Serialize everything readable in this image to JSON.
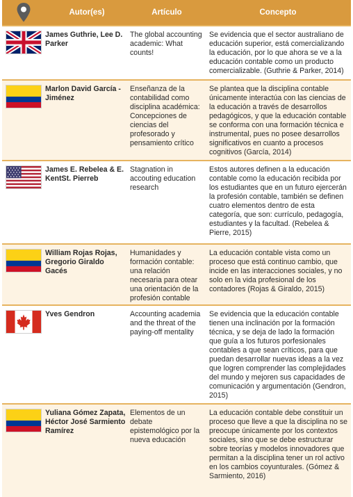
{
  "header": {
    "icon": "location-pin-icon",
    "author": "Autor(es)",
    "article": "Artículo",
    "concept": "Concepto"
  },
  "rows": [
    {
      "flag": "uk-flag-icon",
      "author": "James Guthrie, Lee D. Parker",
      "article": "The global accounting academic: What counts!",
      "concept": "Se evidencia que el sector australiano de educación superior, está comercializando la educación, por lo que ahora se ve a la educación contable como un producto comercializable. (Guthrie & Parker, 2014)"
    },
    {
      "flag": "colombia-flag-icon",
      "author": "Marlon David García -Jiménez",
      "article": "Enseñanza de la contabilidad como disciplina académica: Concepciones de ciencias del profesorado y pensamiento crítico",
      "concept": "Se plantea que la disciplina contable únicamente interactúa con las ciencias de la educación a través de desarrollos pedagógicos, y que la educación contable se conforma con una formación técnica e instrumental, pues no posee desarrollos significativos en cuanto a procesos cognitivos (García, 2014)"
    },
    {
      "flag": "usa-flag-icon",
      "author": "James E. Rebelea & E. KentSt. Pierreb",
      "article": "Stagnation in accouting education research",
      "concept": "Estos autores definen a la educación contable como la educación recibida por los estudiantes que en un futuro ejercerán la profesión contable, también se definen cuatro elementos dentro de esta categoría, que son: currículo, pedagogía, estudiantes y la facultad. (Rebelea & Pierre, 2015)"
    },
    {
      "flag": "colombia-flag-icon",
      "author": "William Rojas Rojas, Gregorio Giraldo Gacés",
      "article": "Humanidades y formación contable: una relación necesaria para otear una orientación de la profesión contable",
      "concept": "La educación contable vista como un proceso que está continuo cambio, que incide en las interacciones sociales, y no solo en la vida profesional de los contadores (Rojas & Giraldo, 2015)"
    },
    {
      "flag": "canada-flag-icon",
      "author": "Yves Gendron",
      "article": "Accounting academia and the threat of the paying-off mentality",
      "concept": "Se evidencia que la educación contable tienen una inclinación por la formación técnica, y se deja de lado la formación que guía a los futuros porfesionales contables a que sean críticos, para que puedan desarrollar nuevas ideas a la vez que logren comprender las complejidades del mundo y mejoren sus capacidades de comunicación y argumentación (Gendron, 2015)"
    },
    {
      "flag": "colombia-flag-icon",
      "author": "Yuliana Gómez Zapata, Héctor José Sarmiento Ramírez",
      "article": "Elementos de un debate epistemológico por la nueva educación",
      "concept": "La educación contable debe constituir un proceso que lleve a que la disciplina no se preocupe únicamente por los contextos sociales, sino que se debe estructurar sobre teorías y modelos innovadores que permitan a la disciplina tener un rol activo en los cambios coyunturales. (Gómez & Sarmiento, 2016)"
    }
  ]
}
